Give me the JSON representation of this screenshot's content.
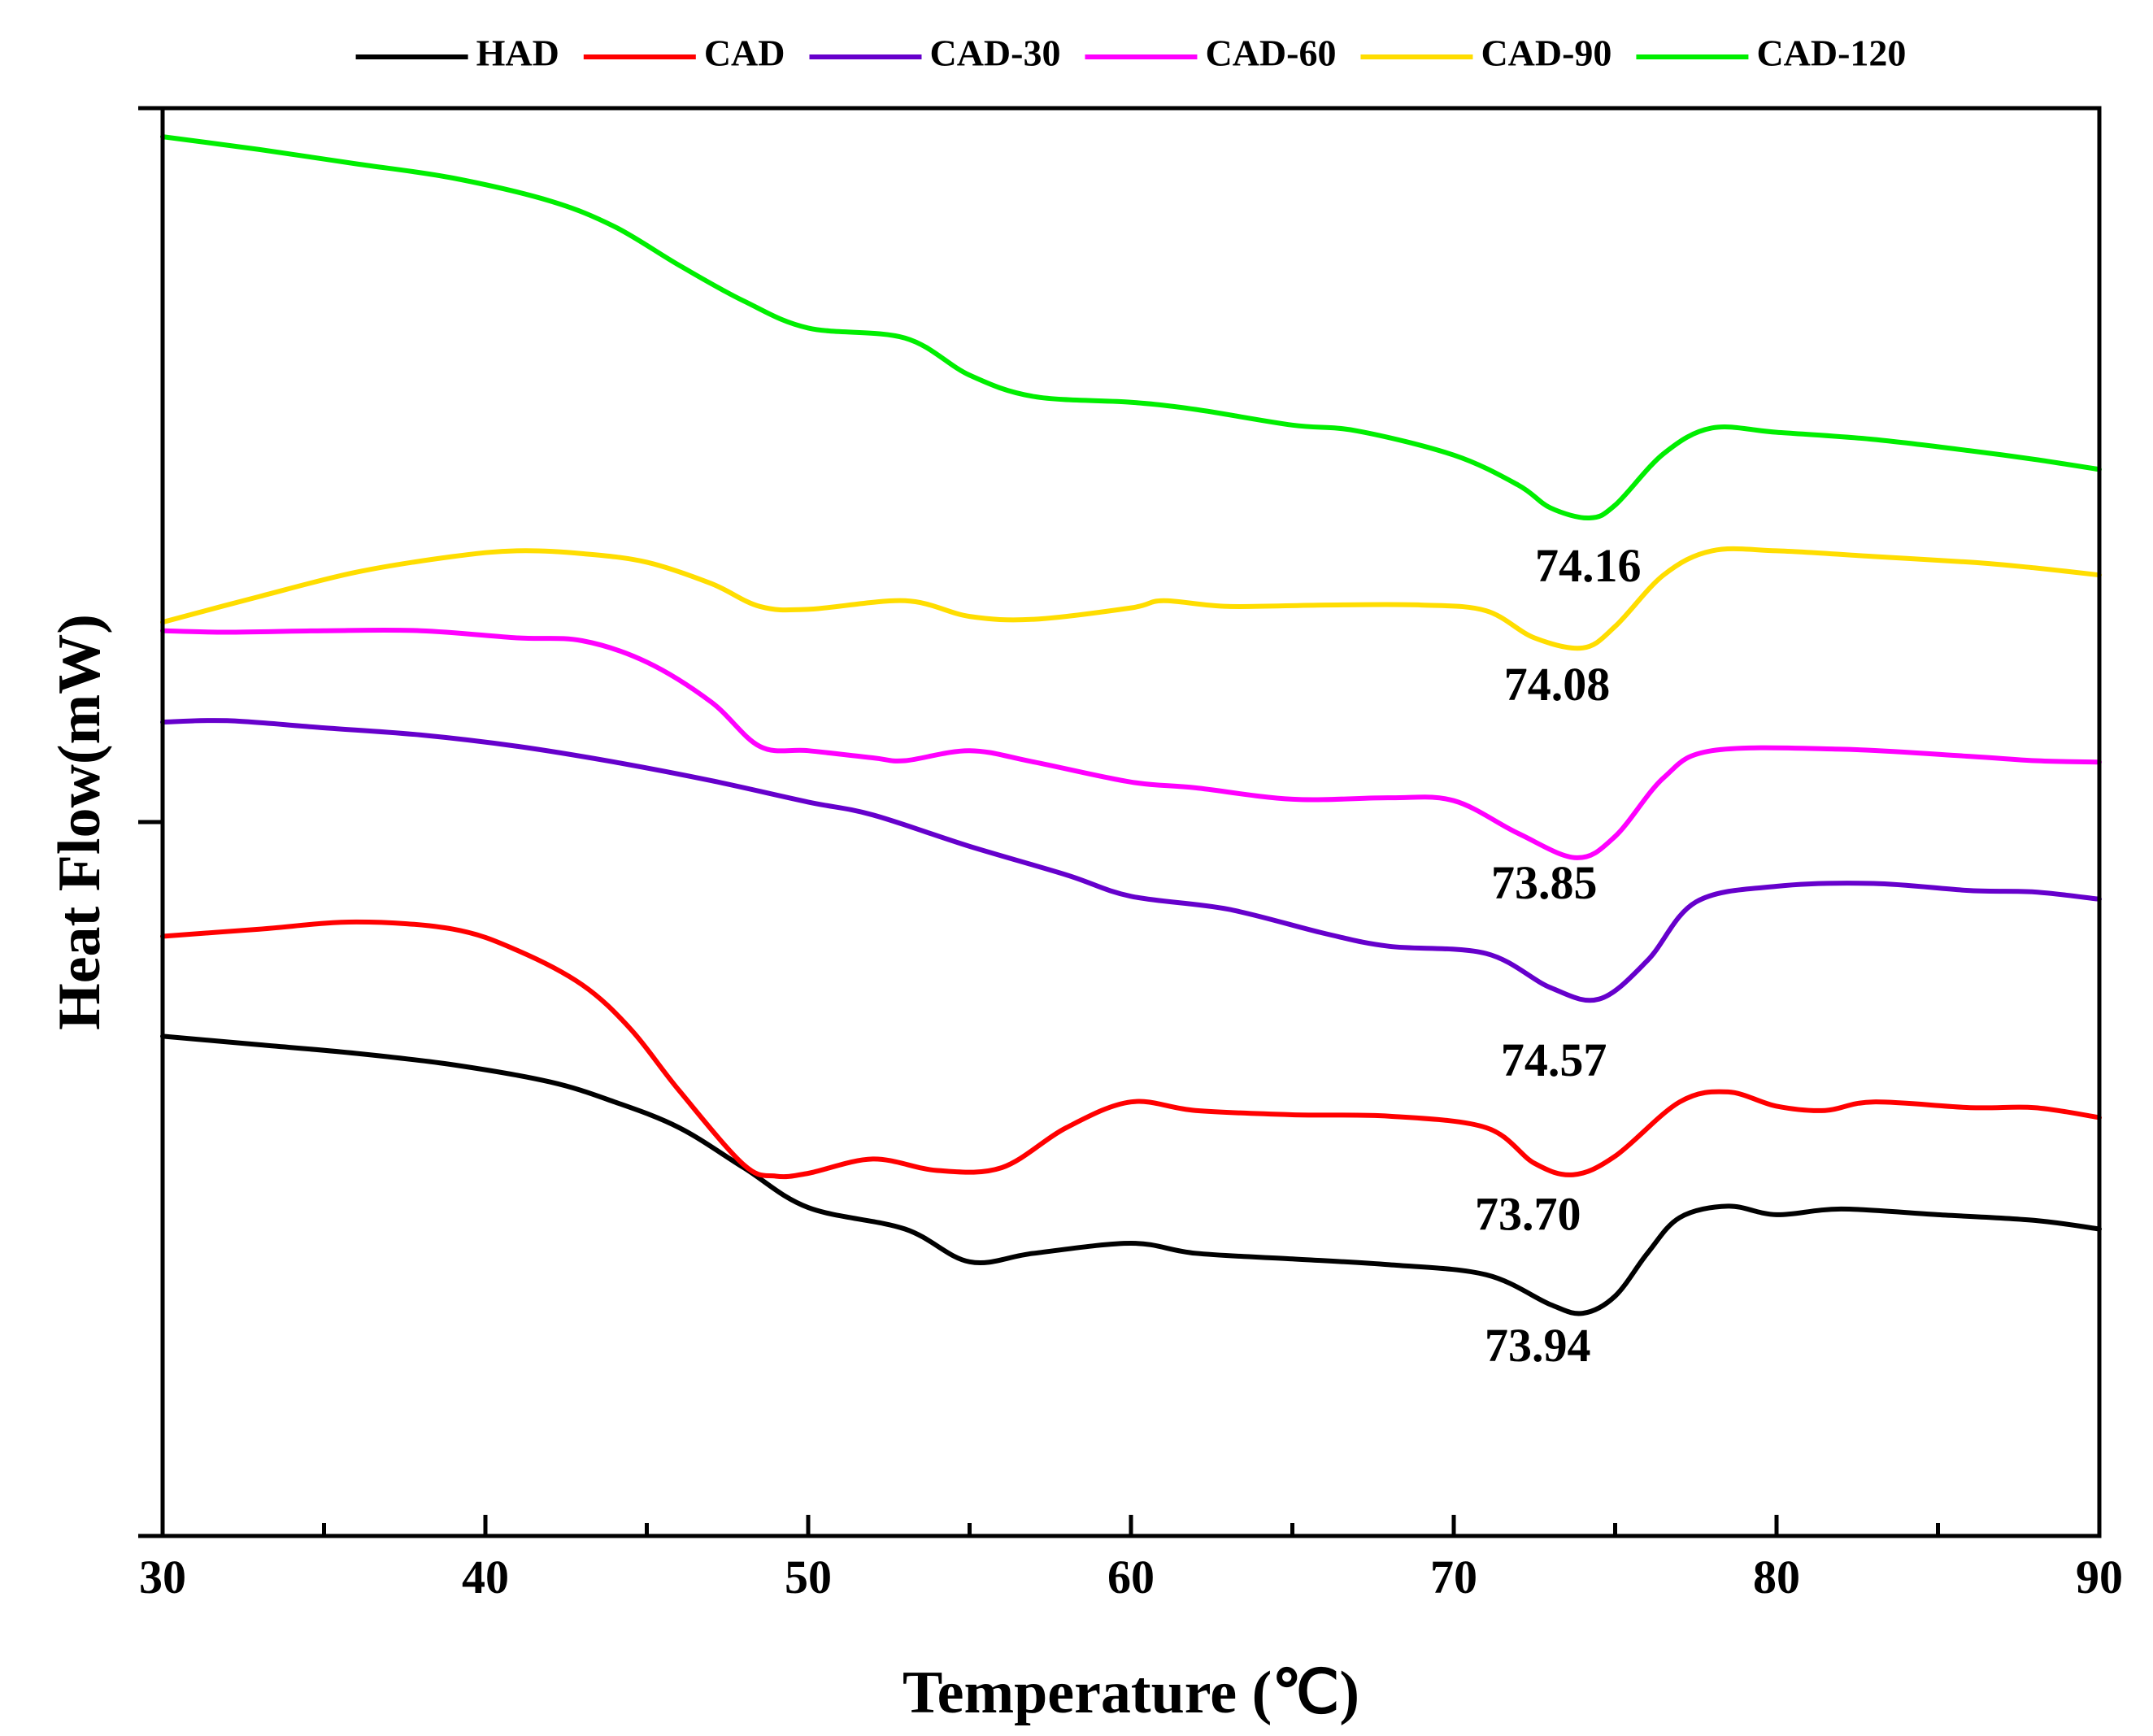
{
  "chart_data": {
    "type": "line",
    "title": "",
    "xlabel": "Temperature (℃)",
    "ylabel": "Heat Flow(mW)",
    "xlim": [
      30,
      90
    ],
    "ylim": [
      0,
      100
    ],
    "xticks": [
      "30",
      "40",
      "50",
      "60",
      "70",
      "80",
      "90"
    ],
    "legend_position": "top",
    "series": [
      {
        "name": "HAD",
        "color": "#000000",
        "x": [
          30,
          33,
          36,
          39,
          42,
          44,
          46,
          48,
          50,
          53,
          55,
          57,
          60,
          62,
          65,
          68,
          71,
          73,
          74,
          75,
          76,
          77,
          78.5,
          80,
          82,
          85,
          88,
          90
        ],
        "y": [
          35,
          34.4,
          33.8,
          33,
          31.8,
          30.4,
          28.6,
          25.8,
          23,
          21.5,
          19.2,
          19.8,
          20.5,
          19.8,
          19.4,
          19.0,
          18.3,
          16.2,
          15.6,
          16.8,
          19.8,
          22.3,
          23.1,
          22.5,
          22.9,
          22.5,
          22.1,
          21.5
        ]
      },
      {
        "name": "CAD",
        "color": "#ff0000",
        "x": [
          30,
          33,
          36,
          39,
          41,
          43,
          44.5,
          46,
          48,
          49,
          50,
          52,
          54,
          56,
          58,
          60,
          62,
          65,
          68,
          71,
          72.5,
          73.7,
          75,
          77,
          78.5,
          80,
          81.5,
          83,
          86,
          88,
          90
        ],
        "y": [
          42,
          42.5,
          43,
          42.5,
          41,
          38.6,
          35.5,
          31.2,
          26.0,
          25.2,
          25.4,
          26.4,
          25.6,
          25.8,
          28.6,
          30.4,
          29.8,
          29.5,
          29.4,
          28.6,
          26.1,
          25.3,
          26.6,
          30.4,
          31.1,
          30.1,
          29.8,
          30.4,
          30.0,
          30.0,
          29.3
        ]
      },
      {
        "name": "CAD-30",
        "color": "#6600cc",
        "x": [
          30,
          32,
          35,
          38,
          41,
          44,
          47,
          50,
          52,
          55,
          58,
          60,
          63,
          66,
          68,
          71,
          73,
          74.5,
          76,
          77.5,
          80,
          83,
          86,
          88,
          90
        ],
        "y": [
          57,
          57.1,
          56.6,
          56.1,
          55.3,
          54.2,
          52.9,
          51.4,
          50.5,
          48.3,
          46.3,
          44.8,
          43.9,
          42.2,
          41.3,
          40.8,
          38.4,
          37.6,
          40.3,
          44.4,
          45.5,
          45.7,
          45.2,
          45.1,
          44.6
        ]
      },
      {
        "name": "CAD-60",
        "color": "#ff00ff",
        "x": [
          30,
          32,
          35,
          38,
          41,
          43,
          45,
          47,
          48.5,
          50,
          52,
          53,
          55,
          57,
          60,
          62,
          65,
          68,
          70,
          72,
          73.8,
          75,
          76.5,
          78,
          82,
          86,
          88,
          90
        ],
        "y": [
          63.4,
          63.3,
          63.4,
          63.4,
          62.9,
          62.7,
          61.2,
          58.4,
          55.3,
          55.0,
          54.5,
          54.3,
          55.0,
          54.2,
          52.8,
          52.4,
          51.6,
          51.7,
          51.5,
          49.2,
          47.5,
          49.0,
          53.1,
          55.0,
          55.1,
          54.6,
          54.3,
          54.2
        ]
      },
      {
        "name": "CAD-90",
        "color": "#ffdd00",
        "x": [
          30,
          33,
          36,
          39,
          41,
          43,
          45,
          47,
          48.5,
          50,
          53,
          55,
          57,
          60,
          61,
          63,
          66,
          69,
          71,
          72.5,
          74,
          75,
          76.5,
          78,
          80,
          83,
          86,
          88,
          90
        ],
        "y": [
          64.0,
          65.8,
          67.5,
          68.6,
          69.0,
          68.8,
          68.2,
          66.7,
          65.1,
          64.9,
          65.5,
          64.4,
          64.2,
          65.0,
          65.5,
          65.1,
          65.2,
          65.2,
          64.8,
          62.9,
          62.2,
          63.7,
          67.3,
          69.0,
          69.0,
          68.6,
          68.2,
          67.8,
          67.3
        ]
      },
      {
        "name": "CAD-120",
        "color": "#00ee00",
        "x": [
          30,
          33,
          36,
          39,
          42,
          44,
          46,
          48,
          50,
          53,
          55,
          57,
          60,
          62,
          65,
          67,
          70,
          72,
          73,
          74.2,
          75,
          76.5,
          78,
          80,
          83,
          86,
          88,
          90
        ],
        "y": [
          98.0,
          97.1,
          96.1,
          95.1,
          93.5,
          91.7,
          89.0,
          86.5,
          84.6,
          83.9,
          81.3,
          79.8,
          79.4,
          78.9,
          77.8,
          77.4,
          75.7,
          73.6,
          72.0,
          71.3,
          72.2,
          75.8,
          77.6,
          77.3,
          76.8,
          76.0,
          75.4,
          74.7
        ]
      }
    ],
    "annotations": [
      {
        "text": "74.16",
        "x": 74.16,
        "y": 67.6
      },
      {
        "text": "74.08",
        "x": 73.2,
        "y": 59.3
      },
      {
        "text": "73.85",
        "x": 72.8,
        "y": 45.4
      },
      {
        "text": "74.57",
        "x": 73.1,
        "y": 33.0
      },
      {
        "text": "73.70",
        "x": 72.3,
        "y": 22.2
      },
      {
        "text": "73.94",
        "x": 72.6,
        "y": 13.0
      }
    ]
  }
}
